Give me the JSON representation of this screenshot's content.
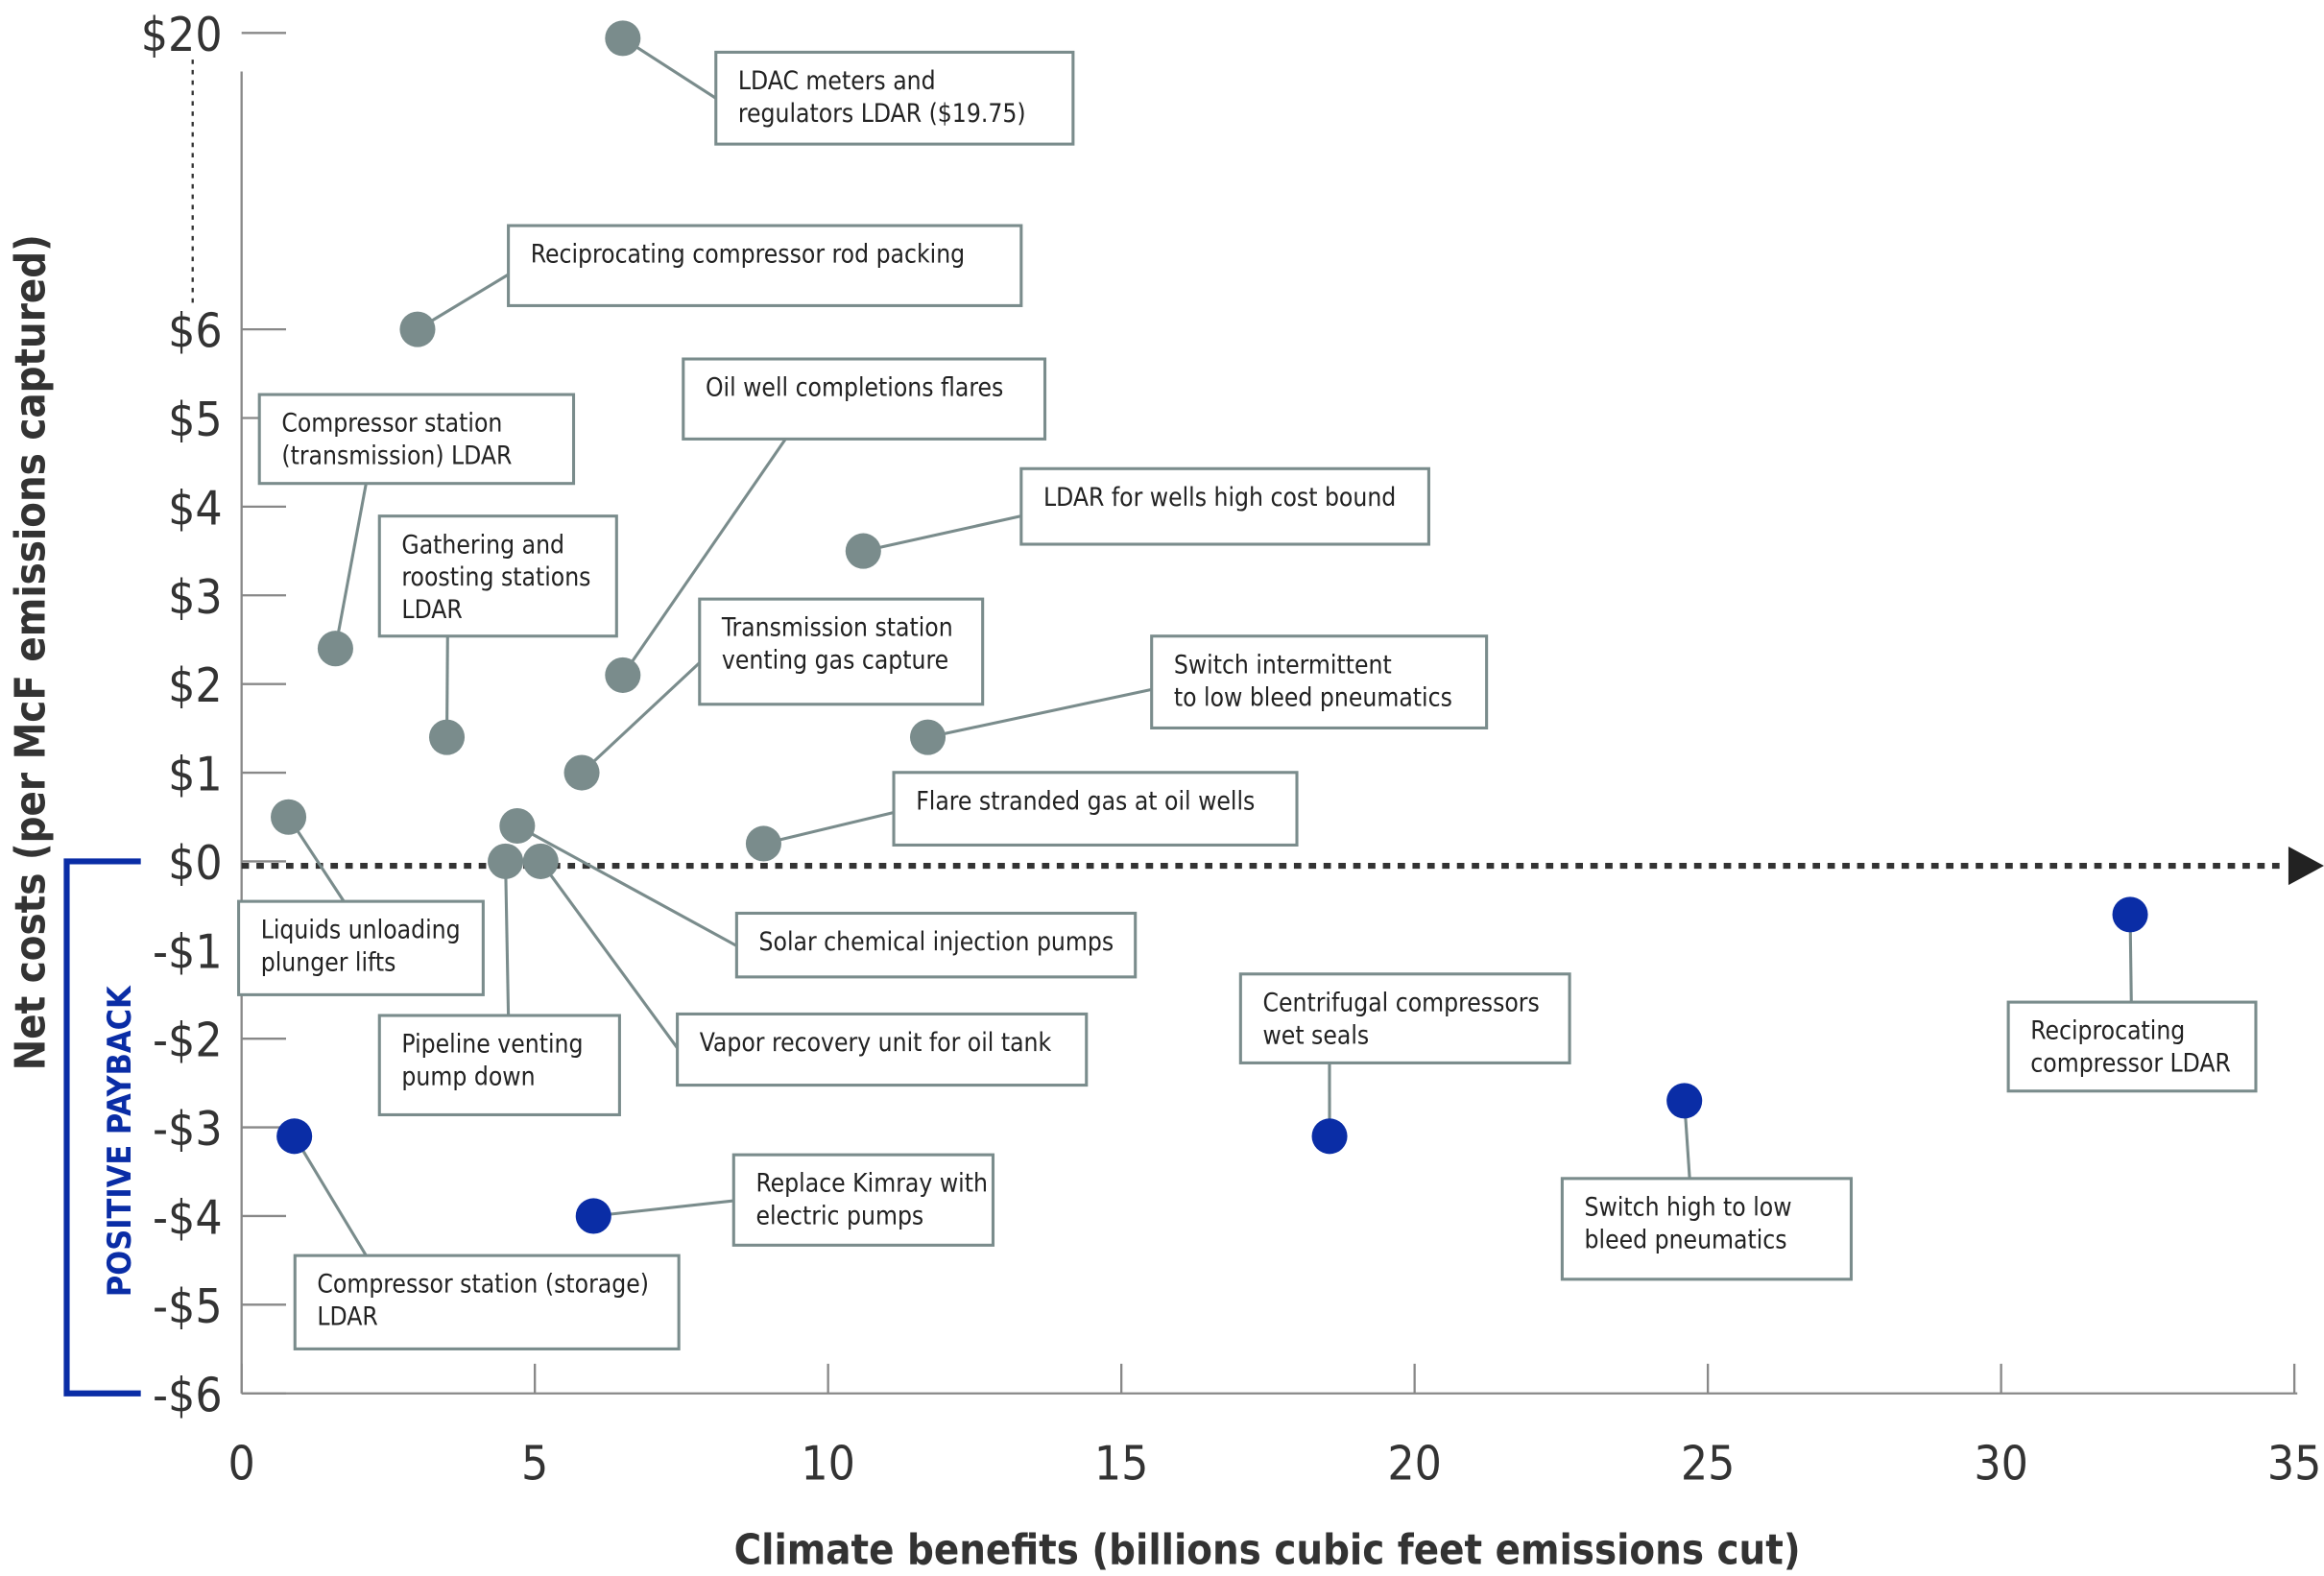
{
  "chart_data": {
    "type": "scatter",
    "x_label": "Climate benefits (billions cubic feet emissions cut)",
    "y_label": "Net costs (per McF emissions captured)",
    "annotation": "POSITIVE PAYBACK",
    "xlim": [
      0,
      35
    ],
    "xticks": [
      0,
      5,
      10,
      15,
      20,
      25,
      30,
      35
    ],
    "ylim": [
      -6,
      20
    ],
    "ybreak": [
      6,
      20
    ],
    "yticks": [
      {
        "value": 20,
        "label": "$20"
      },
      {
        "value": 6,
        "label": "$6"
      },
      {
        "value": 5,
        "label": "$5"
      },
      {
        "value": 4,
        "label": "$4"
      },
      {
        "value": 3,
        "label": "$3"
      },
      {
        "value": 2,
        "label": "$2"
      },
      {
        "value": 1,
        "label": "$1"
      },
      {
        "value": 0,
        "label": "$0"
      },
      {
        "value": -1,
        "label": "-$1"
      },
      {
        "value": -2,
        "label": "-$2"
      },
      {
        "value": -3,
        "label": "-$3"
      },
      {
        "value": -4,
        "label": "-$4"
      },
      {
        "value": -5,
        "label": "-$5"
      },
      {
        "value": -6,
        "label": "-$6"
      }
    ],
    "points": [
      {
        "label": [
          "LDAC meters and",
          "regulators LDAR ($19.75)"
        ],
        "x": 6.5,
        "y": 19.75,
        "color": "#7a8c8c"
      },
      {
        "label": [
          "Reciprocating compressor rod packing"
        ],
        "x": 3.0,
        "y": 6.0,
        "color": "#7a8c8c"
      },
      {
        "label": [
          "Compressor station",
          "(transmission) LDAR"
        ],
        "x": 1.6,
        "y": 2.4,
        "color": "#7a8c8c"
      },
      {
        "label": [
          "Gathering and",
          "roosting stations",
          "LDAR"
        ],
        "x": 3.5,
        "y": 1.4,
        "color": "#7a8c8c"
      },
      {
        "label": [
          "Oil well completions flares"
        ],
        "x": 6.5,
        "y": 2.1,
        "color": "#7a8c8c"
      },
      {
        "label": [
          "LDAR for wells high cost bound"
        ],
        "x": 10.6,
        "y": 3.5,
        "color": "#7a8c8c"
      },
      {
        "label": [
          "Transmission station",
          "venting  gas capture"
        ],
        "x": 5.8,
        "y": 1.0,
        "color": "#7a8c8c"
      },
      {
        "label": [
          "Switch intermittent",
          "to low bleed pneumatics"
        ],
        "x": 11.7,
        "y": 1.4,
        "color": "#7a8c8c"
      },
      {
        "label": [
          "Flare stranded gas at oil wells"
        ],
        "x": 8.9,
        "y": 0.2,
        "color": "#7a8c8c"
      },
      {
        "label": [
          "Liquids unloading",
          "plunger lifts"
        ],
        "x": 0.8,
        "y": 0.5,
        "color": "#7a8c8c"
      },
      {
        "label": [
          "Solar chemical injection pumps"
        ],
        "x": 4.7,
        "y": 0.4,
        "color": "#7a8c8c"
      },
      {
        "label": [
          "Pipeline venting",
          "pump down"
        ],
        "x": 4.5,
        "y": 0.0,
        "color": "#7a8c8c"
      },
      {
        "label": [
          "Vapor recovery unit for oil tank"
        ],
        "x": 5.1,
        "y": 0.0,
        "color": "#7a8c8c"
      },
      {
        "label": [
          "Reciprocating",
          "compressor LDAR"
        ],
        "x": 32.2,
        "y": -0.6,
        "color": "#0a2da6"
      },
      {
        "label": [
          "Centrifugal compressors",
          "wet seals"
        ],
        "x": 18.55,
        "y": -3.1,
        "color": "#0a2da6"
      },
      {
        "label": [
          "Switch high to low",
          "bleed pneumatics"
        ],
        "x": 24.6,
        "y": -2.7,
        "color": "#0a2da6"
      },
      {
        "label": [
          "Compressor station (storage)",
          "LDAR"
        ],
        "x": 0.9,
        "y": -3.1,
        "color": "#0a2da6"
      },
      {
        "label": [
          "Replace Kimray with",
          "electric pumps"
        ],
        "x": 6.0,
        "y": -4.0,
        "color": "#0a2da6"
      }
    ]
  }
}
